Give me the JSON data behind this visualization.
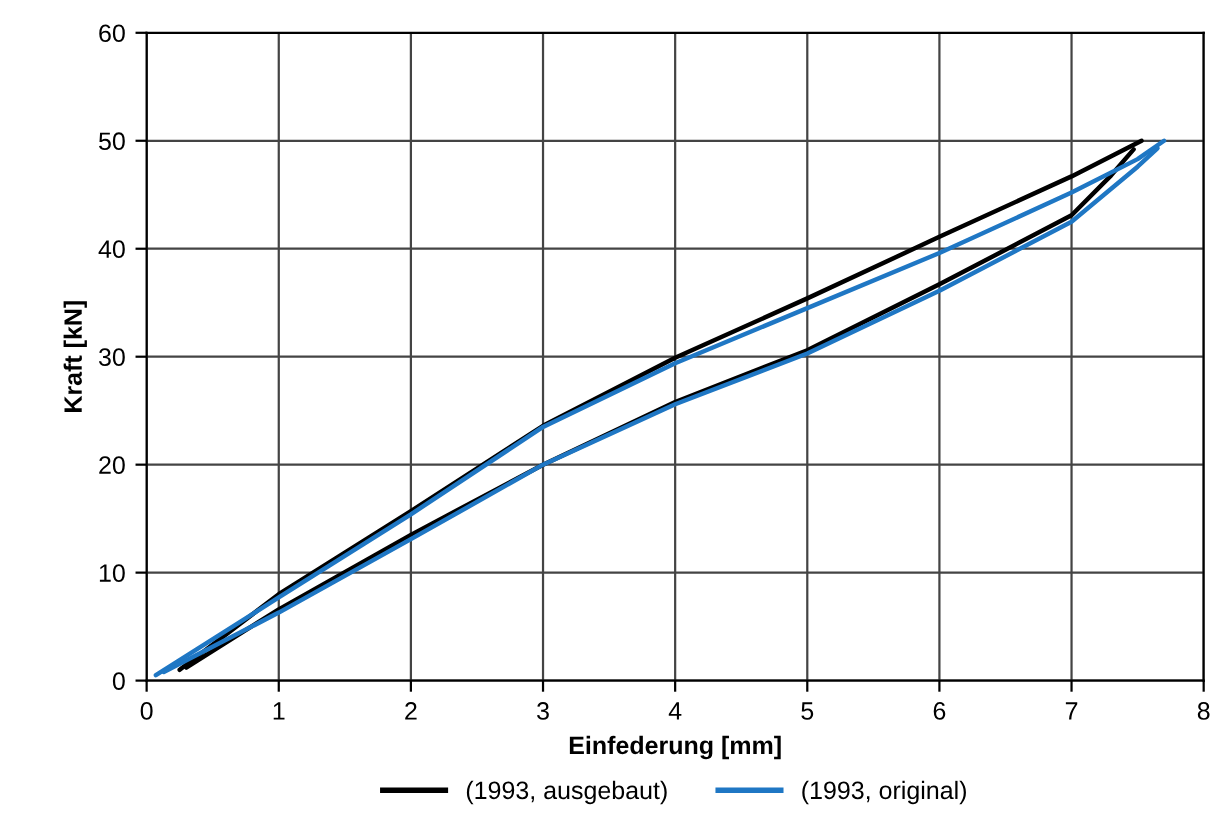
{
  "chart_data": {
    "type": "line",
    "xlabel": "Einfederung [mm]",
    "ylabel": "Kraft [kN]",
    "xlim": [
      0,
      8
    ],
    "xticks": [
      0,
      1,
      2,
      3,
      4,
      5,
      6,
      7,
      8
    ],
    "ylim": [
      0,
      60
    ],
    "yticks": [
      0,
      10,
      20,
      30,
      40,
      50,
      60
    ],
    "grid": true,
    "legend": "bottom",
    "marker": "none",
    "line_style": "solid",
    "series": [
      {
        "name": "(1993, ausgebaut)",
        "color": "#000000",
        "x": [
          0.25,
          1,
          2,
          3,
          4,
          5,
          6,
          7,
          7.53
        ],
        "values": [
          1.0,
          8.0,
          15.7,
          23.6,
          29.9,
          35.4,
          41.1,
          46.7,
          50
        ]
      },
      {
        "color": "#000000",
        "x": [
          0.3,
          1,
          2,
          3,
          4,
          5,
          6,
          7,
          7.3,
          7.47
        ],
        "values": [
          1.2,
          6.6,
          13.5,
          20,
          25.8,
          30.6,
          36.7,
          43.1,
          46.8,
          49.2
        ]
      },
      {
        "name": "(1993, original)",
        "color": "#1f77c4",
        "x": [
          0.07,
          1,
          2,
          3,
          4,
          5,
          6,
          7,
          7.5,
          7.7
        ],
        "values": [
          0.5,
          7.7,
          15.4,
          23.5,
          29.4,
          34.5,
          39.6,
          45.2,
          48.3,
          50
        ]
      },
      {
        "color": "#1f77c4",
        "x": [
          0.13,
          1,
          2,
          3,
          4,
          5,
          6,
          7,
          7.5,
          7.65
        ],
        "values": [
          0.8,
          6.3,
          13.1,
          20,
          25.6,
          30.3,
          36.1,
          42.5,
          47.6,
          49.3
        ]
      }
    ]
  }
}
